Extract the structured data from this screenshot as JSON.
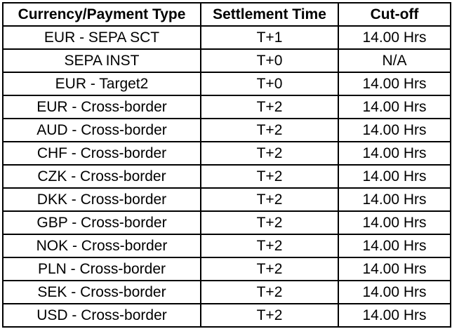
{
  "table": {
    "headers": [
      "Currency/Payment Type",
      "Settlement Time",
      "Cut-off"
    ],
    "rows": [
      [
        "EUR - SEPA SCT",
        "T+1",
        "14.00 Hrs"
      ],
      [
        "SEPA INST",
        "T+0",
        "N/A"
      ],
      [
        "EUR - Target2",
        "T+0",
        "14.00 Hrs"
      ],
      [
        "EUR - Cross-border",
        "T+2",
        "14.00 Hrs"
      ],
      [
        "AUD - Cross-border",
        "T+2",
        "14.00 Hrs"
      ],
      [
        "CHF - Cross-border",
        "T+2",
        "14.00 Hrs"
      ],
      [
        "CZK - Cross-border",
        "T+2",
        "14.00 Hrs"
      ],
      [
        "DKK - Cross-border",
        "T+2",
        "14.00 Hrs"
      ],
      [
        "GBP - Cross-border",
        "T+2",
        "14.00 Hrs"
      ],
      [
        "NOK - Cross-border",
        "T+2",
        "14.00 Hrs"
      ],
      [
        "PLN - Cross-border",
        "T+2",
        "14.00 Hrs"
      ],
      [
        "SEK - Cross-border",
        "T+2",
        "14.00 Hrs"
      ],
      [
        "USD - Cross-border",
        "T+2",
        "14.00 Hrs"
      ]
    ]
  }
}
